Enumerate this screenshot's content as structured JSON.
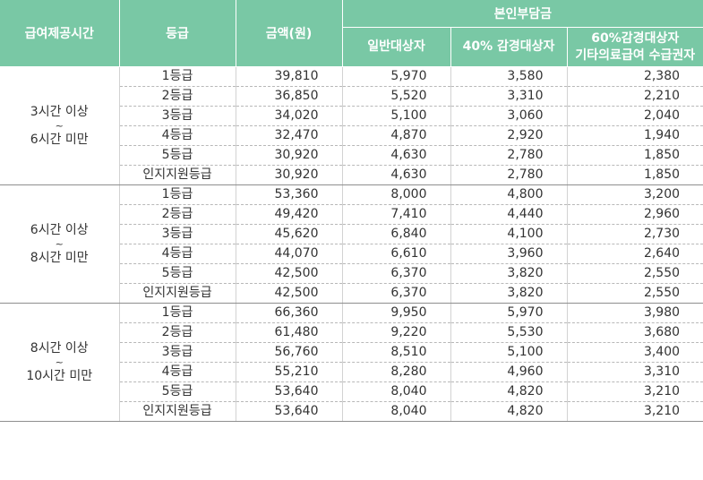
{
  "headers": {
    "time": "급여제공시간",
    "grade": "등급",
    "amount": "금액(원)",
    "copay_group": "본인부담금",
    "general": "일반대상자",
    "reduced40": "40% 감경대상자",
    "reduced60_line1": "60%감경대상자",
    "reduced60_line2": "기타의료급여 수급권자"
  },
  "groups": [
    {
      "time_from": "3시간 이상",
      "tilde": "~",
      "time_to": "6시간 미만",
      "rows": [
        {
          "grade": "1등급",
          "amount": "39,810",
          "general": "5,970",
          "r40": "3,580",
          "r60": "2,380"
        },
        {
          "grade": "2등급",
          "amount": "36,850",
          "general": "5,520",
          "r40": "3,310",
          "r60": "2,210"
        },
        {
          "grade": "3등급",
          "amount": "34,020",
          "general": "5,100",
          "r40": "3,060",
          "r60": "2,040"
        },
        {
          "grade": "4등급",
          "amount": "32,470",
          "general": "4,870",
          "r40": "2,920",
          "r60": "1,940"
        },
        {
          "grade": "5등급",
          "amount": "30,920",
          "general": "4,630",
          "r40": "2,780",
          "r60": "1,850"
        },
        {
          "grade": "인지지원등급",
          "amount": "30,920",
          "general": "4,630",
          "r40": "2,780",
          "r60": "1,850"
        }
      ]
    },
    {
      "time_from": "6시간 이상",
      "tilde": "~",
      "time_to": "8시간 미만",
      "rows": [
        {
          "grade": "1등급",
          "amount": "53,360",
          "general": "8,000",
          "r40": "4,800",
          "r60": "3,200"
        },
        {
          "grade": "2등급",
          "amount": "49,420",
          "general": "7,410",
          "r40": "4,440",
          "r60": "2,960"
        },
        {
          "grade": "3등급",
          "amount": "45,620",
          "general": "6,840",
          "r40": "4,100",
          "r60": "2,730"
        },
        {
          "grade": "4등급",
          "amount": "44,070",
          "general": "6,610",
          "r40": "3,960",
          "r60": "2,640"
        },
        {
          "grade": "5등급",
          "amount": "42,500",
          "general": "6,370",
          "r40": "3,820",
          "r60": "2,550"
        },
        {
          "grade": "인지지원등급",
          "amount": "42,500",
          "general": "6,370",
          "r40": "3,820",
          "r60": "2,550"
        }
      ]
    },
    {
      "time_from": "8시간 이상",
      "tilde": "~",
      "time_to": "10시간 미만",
      "rows": [
        {
          "grade": "1등급",
          "amount": "66,360",
          "general": "9,950",
          "r40": "5,970",
          "r60": "3,980"
        },
        {
          "grade": "2등급",
          "amount": "61,480",
          "general": "9,220",
          "r40": "5,530",
          "r60": "3,680"
        },
        {
          "grade": "3등급",
          "amount": "56,760",
          "general": "8,510",
          "r40": "5,100",
          "r60": "3,400"
        },
        {
          "grade": "4등급",
          "amount": "55,210",
          "general": "8,280",
          "r40": "4,960",
          "r60": "3,310"
        },
        {
          "grade": "5등급",
          "amount": "53,640",
          "general": "8,040",
          "r40": "4,820",
          "r60": "3,210"
        },
        {
          "grade": "인지지원등급",
          "amount": "53,640",
          "general": "8,040",
          "r40": "4,820",
          "r60": "3,210"
        }
      ]
    }
  ]
}
